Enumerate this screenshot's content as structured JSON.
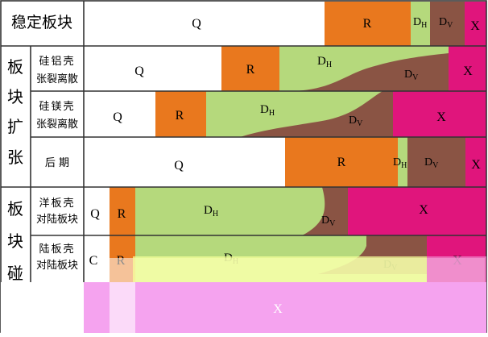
{
  "colors": {
    "Q": "#ffffff",
    "R": "#e9781e",
    "DH": "#b5d97c",
    "DV": "#8a5444",
    "X": "#e0157c",
    "grid": "#333333"
  },
  "headers": {
    "stable": "稳定板块",
    "expansion_chars": [
      "板",
      "块",
      "扩",
      "张"
    ],
    "collision_chars": [
      "板",
      "块",
      "碰"
    ]
  },
  "stage_labels": {
    "Q": "Q",
    "R": "R",
    "D": "D",
    "H": "H",
    "V": "V",
    "X": "X",
    "C": "C"
  },
  "rows": [
    {
      "id": "stable",
      "label": ""
    },
    {
      "id": "si-al",
      "label_lines": [
        "硅铝壳",
        "张裂离散"
      ]
    },
    {
      "id": "si-mg",
      "label_lines": [
        "硅镁壳",
        "张裂离散"
      ]
    },
    {
      "id": "late",
      "label_lines": [
        "后 期"
      ]
    },
    {
      "id": "ocean",
      "label_lines": [
        "洋板壳",
        "对陆板块"
      ]
    },
    {
      "id": "land",
      "label_lines": [
        "陆板壳",
        "对陆板块"
      ]
    }
  ]
}
